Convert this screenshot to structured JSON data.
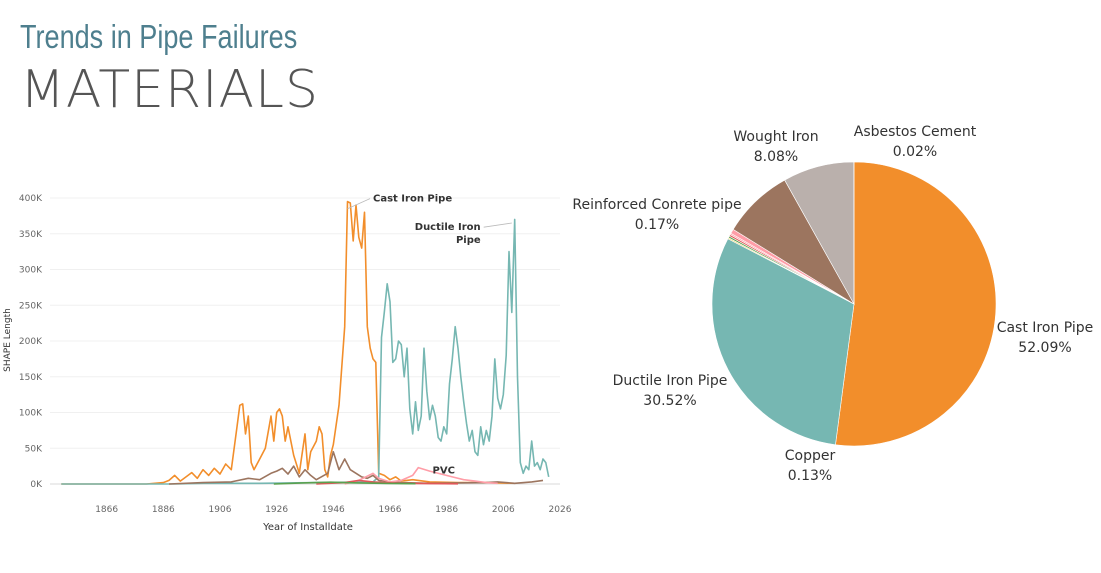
{
  "header": {
    "subtitle": "Trends in Pipe Failures",
    "title": "MATERIALS"
  },
  "chart_data": [
    {
      "type": "line",
      "xlabel": "Year of Installdate",
      "ylabel": "SHAPE Length",
      "xlim": [
        1846,
        2026
      ],
      "ylim": [
        0,
        400000
      ],
      "x_ticks": [
        1866,
        1886,
        1906,
        1926,
        1946,
        1966,
        1986,
        2006,
        2026
      ],
      "y_ticks": [
        {
          "value": 0,
          "label": "0K"
        },
        {
          "value": 50000,
          "label": "50K"
        },
        {
          "value": 100000,
          "label": "100K"
        },
        {
          "value": 150000,
          "label": "150K"
        },
        {
          "value": 200000,
          "label": "200K"
        },
        {
          "value": 250000,
          "label": "250K"
        },
        {
          "value": 300000,
          "label": "300K"
        },
        {
          "value": 350000,
          "label": "350K"
        },
        {
          "value": 400000,
          "label": "400K"
        }
      ],
      "grid": true,
      "series": [
        {
          "name": "Cast Iron Pipe",
          "label": "Cast Iron Pipe",
          "color": "#f28e2b",
          "points": [
            [
              1850,
              0
            ],
            [
              1880,
              0
            ],
            [
              1886,
              2000
            ],
            [
              1888,
              5000
            ],
            [
              1890,
              12000
            ],
            [
              1892,
              4000
            ],
            [
              1894,
              10000
            ],
            [
              1896,
              16000
            ],
            [
              1898,
              8000
            ],
            [
              1900,
              20000
            ],
            [
              1902,
              12000
            ],
            [
              1904,
              22000
            ],
            [
              1906,
              14000
            ],
            [
              1908,
              28000
            ],
            [
              1910,
              20000
            ],
            [
              1912,
              80000
            ],
            [
              1913,
              110000
            ],
            [
              1914,
              112000
            ],
            [
              1915,
              70000
            ],
            [
              1916,
              95000
            ],
            [
              1917,
              30000
            ],
            [
              1918,
              20000
            ],
            [
              1920,
              35000
            ],
            [
              1922,
              50000
            ],
            [
              1924,
              95000
            ],
            [
              1925,
              60000
            ],
            [
              1926,
              100000
            ],
            [
              1927,
              105000
            ],
            [
              1928,
              95000
            ],
            [
              1929,
              60000
            ],
            [
              1930,
              80000
            ],
            [
              1932,
              40000
            ],
            [
              1934,
              15000
            ],
            [
              1936,
              70000
            ],
            [
              1937,
              20000
            ],
            [
              1938,
              45000
            ],
            [
              1940,
              60000
            ],
            [
              1941,
              80000
            ],
            [
              1942,
              70000
            ],
            [
              1943,
              20000
            ],
            [
              1944,
              10000
            ],
            [
              1945,
              40000
            ],
            [
              1946,
              55000
            ],
            [
              1948,
              110000
            ],
            [
              1950,
              220000
            ],
            [
              1951,
              395000
            ],
            [
              1952,
              393000
            ],
            [
              1953,
              340000
            ],
            [
              1954,
              390000
            ],
            [
              1955,
              345000
            ],
            [
              1956,
              330000
            ],
            [
              1957,
              380000
            ],
            [
              1958,
              220000
            ],
            [
              1959,
              190000
            ],
            [
              1960,
              175000
            ],
            [
              1961,
              170000
            ],
            [
              1962,
              15000
            ],
            [
              1964,
              12000
            ],
            [
              1966,
              6000
            ],
            [
              1968,
              10000
            ],
            [
              1970,
              4000
            ],
            [
              1974,
              6000
            ],
            [
              1980,
              3000
            ],
            [
              1990,
              2000
            ],
            [
              2000,
              2000
            ],
            [
              2010,
              1000
            ]
          ]
        },
        {
          "name": "Ductile Iron Pipe",
          "label": "Ductile Iron Pipe",
          "color": "#76b7b2",
          "points": [
            [
              1850,
              0
            ],
            [
              1890,
              0
            ],
            [
              1900,
              1000
            ],
            [
              1920,
              1000
            ],
            [
              1940,
              2000
            ],
            [
              1960,
              3000
            ],
            [
              1962,
              10000
            ],
            [
              1963,
              205000
            ],
            [
              1964,
              240000
            ],
            [
              1965,
              280000
            ],
            [
              1966,
              255000
            ],
            [
              1967,
              170000
            ],
            [
              1968,
              175000
            ],
            [
              1969,
              200000
            ],
            [
              1970,
              195000
            ],
            [
              1971,
              150000
            ],
            [
              1972,
              190000
            ],
            [
              1973,
              105000
            ],
            [
              1974,
              70000
            ],
            [
              1975,
              115000
            ],
            [
              1976,
              75000
            ],
            [
              1977,
              95000
            ],
            [
              1978,
              190000
            ],
            [
              1979,
              130000
            ],
            [
              1980,
              90000
            ],
            [
              1981,
              110000
            ],
            [
              1982,
              95000
            ],
            [
              1983,
              65000
            ],
            [
              1984,
              60000
            ],
            [
              1985,
              80000
            ],
            [
              1986,
              70000
            ],
            [
              1987,
              140000
            ],
            [
              1988,
              175000
            ],
            [
              1989,
              220000
            ],
            [
              1990,
              190000
            ],
            [
              1991,
              150000
            ],
            [
              1992,
              115000
            ],
            [
              1993,
              85000
            ],
            [
              1994,
              60000
            ],
            [
              1995,
              75000
            ],
            [
              1996,
              45000
            ],
            [
              1997,
              40000
            ],
            [
              1998,
              80000
            ],
            [
              1999,
              55000
            ],
            [
              2000,
              75000
            ],
            [
              2001,
              60000
            ],
            [
              2002,
              95000
            ],
            [
              2003,
              175000
            ],
            [
              2004,
              120000
            ],
            [
              2005,
              105000
            ],
            [
              2006,
              125000
            ],
            [
              2007,
              180000
            ],
            [
              2008,
              325000
            ],
            [
              2009,
              240000
            ],
            [
              2010,
              370000
            ],
            [
              2011,
              150000
            ],
            [
              2012,
              30000
            ],
            [
              2013,
              15000
            ],
            [
              2014,
              25000
            ],
            [
              2015,
              20000
            ],
            [
              2016,
              60000
            ],
            [
              2017,
              25000
            ],
            [
              2018,
              30000
            ],
            [
              2019,
              20000
            ],
            [
              2020,
              35000
            ],
            [
              2021,
              30000
            ],
            [
              2022,
              10000
            ]
          ]
        },
        {
          "name": "Wought Iron",
          "label": "",
          "color": "#9c755f",
          "points": [
            [
              1888,
              0
            ],
            [
              1900,
              2000
            ],
            [
              1910,
              3000
            ],
            [
              1916,
              8000
            ],
            [
              1920,
              6000
            ],
            [
              1924,
              15000
            ],
            [
              1926,
              18000
            ],
            [
              1928,
              22000
            ],
            [
              1930,
              14000
            ],
            [
              1932,
              25000
            ],
            [
              1934,
              10000
            ],
            [
              1936,
              20000
            ],
            [
              1938,
              12000
            ],
            [
              1940,
              6000
            ],
            [
              1944,
              15000
            ],
            [
              1946,
              45000
            ],
            [
              1948,
              20000
            ],
            [
              1950,
              35000
            ],
            [
              1952,
              20000
            ],
            [
              1954,
              15000
            ],
            [
              1956,
              10000
            ],
            [
              1958,
              8000
            ],
            [
              1960,
              12000
            ],
            [
              1962,
              5000
            ],
            [
              1966,
              3000
            ],
            [
              1970,
              2000
            ],
            [
              1980,
              1000
            ],
            [
              1990,
              1500
            ],
            [
              2000,
              2000
            ],
            [
              2004,
              3000
            ],
            [
              2010,
              1000
            ],
            [
              2016,
              3000
            ],
            [
              2020,
              5000
            ]
          ]
        },
        {
          "name": "PVC",
          "label": "PVC",
          "color": "#ff9da7",
          "points": [
            [
              1950,
              0
            ],
            [
              1955,
              5000
            ],
            [
              1960,
              15000
            ],
            [
              1962,
              8000
            ],
            [
              1966,
              3000
            ],
            [
              1970,
              5000
            ],
            [
              1974,
              12000
            ],
            [
              1976,
              23000
            ],
            [
              1980,
              18000
            ],
            [
              1984,
              14000
            ],
            [
              1988,
              10000
            ],
            [
              1992,
              6000
            ],
            [
              1996,
              4000
            ],
            [
              2000,
              2000
            ],
            [
              2004,
              1000
            ]
          ]
        },
        {
          "name": "Reinforced Conrete pipe",
          "label": "",
          "color": "#e15759",
          "points": [
            [
              1940,
              0
            ],
            [
              1950,
              2000
            ],
            [
              1955,
              5000
            ],
            [
              1960,
              3000
            ],
            [
              1964,
              2000
            ],
            [
              1970,
              1000
            ],
            [
              1980,
              500
            ],
            [
              1990,
              300
            ]
          ]
        },
        {
          "name": "Asbestos Cement",
          "label": "",
          "color": "#59a14f",
          "points": [
            [
              1925,
              0
            ],
            [
              1935,
              1500
            ],
            [
              1945,
              2500
            ],
            [
              1955,
              1500
            ],
            [
              1965,
              800
            ],
            [
              1975,
              400
            ]
          ]
        }
      ]
    },
    {
      "type": "pie",
      "slices": [
        {
          "label": "Cast Iron Pipe",
          "value": 52.09,
          "value_label": "52.09%",
          "color": "#f28e2b"
        },
        {
          "label": "Ductile Iron Pipe",
          "value": 30.52,
          "value_label": "30.52%",
          "color": "#76b7b2"
        },
        {
          "label": "Copper",
          "value": 0.13,
          "value_label": "0.13%",
          "color": "#edc948"
        },
        {
          "label": "",
          "value": 0.2,
          "value_label": "",
          "color": "#59a14f"
        },
        {
          "label": "",
          "value": 0.2,
          "value_label": "",
          "color": "#e15759"
        },
        {
          "label": "Reinforced Conrete pipe",
          "value": 0.17,
          "value_label": "0.17%",
          "color": "#ff9da7"
        },
        {
          "label": "",
          "value": 0.5,
          "value_label": "",
          "color": "#ff9da7"
        },
        {
          "label": "Wought Iron",
          "value": 8.08,
          "value_label": "8.08%",
          "color": "#9c755f"
        },
        {
          "label": "",
          "value": 8.1,
          "value_label": "",
          "color": "#bab0ac"
        },
        {
          "label": "Asbestos Cement",
          "value": 0.02,
          "value_label": "0.02%",
          "color": "#bab0ac"
        }
      ]
    }
  ]
}
